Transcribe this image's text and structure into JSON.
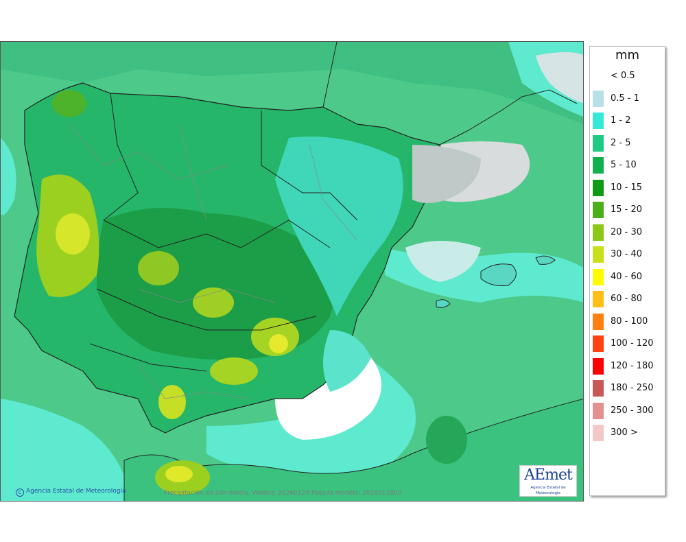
{
  "map": {
    "credit": "Agencia Estatal de Meteorología",
    "footer_note": "Precipitación en 24h media. Validez: 20260129 Pasada modelo: 2026012800",
    "logo_text": "AEmet",
    "logo_subtitle": "Agencia Estatal de Meteorología"
  },
  "legend": {
    "unit": "mm",
    "items": [
      {
        "label": "< 0.5",
        "color": "#ffffff"
      },
      {
        "label": "0.5 - 1",
        "color": "#b7e1e6"
      },
      {
        "label": "1 - 2",
        "color": "#36e9d6"
      },
      {
        "label": "2 - 5",
        "color": "#1fcb84"
      },
      {
        "label": "5 - 10",
        "color": "#11b04f"
      },
      {
        "label": "10 - 15",
        "color": "#0e9a12"
      },
      {
        "label": "15 - 20",
        "color": "#4caf1a"
      },
      {
        "label": "20 - 30",
        "color": "#8cc818"
      },
      {
        "label": "30 - 40",
        "color": "#c8e01a"
      },
      {
        "label": "40 - 60",
        "color": "#fffb00"
      },
      {
        "label": "60 - 80",
        "color": "#ffbf16"
      },
      {
        "label": "80 - 100",
        "color": "#ff7f11"
      },
      {
        "label": "100 - 120",
        "color": "#ff4010"
      },
      {
        "label": "120 - 180",
        "color": "#ff0000"
      },
      {
        "label": "180 - 250",
        "color": "#c85858"
      },
      {
        "label": "250 - 300",
        "color": "#e39090"
      },
      {
        "label": "300 >",
        "color": "#f2c8c8"
      }
    ]
  }
}
